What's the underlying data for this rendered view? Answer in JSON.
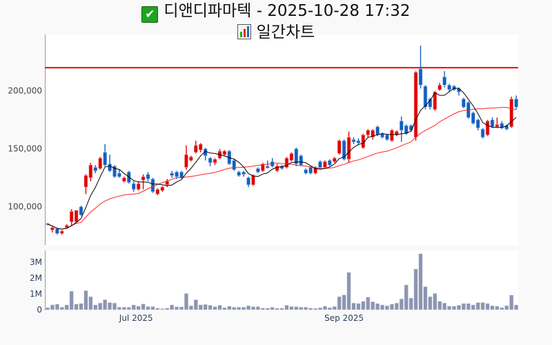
{
  "header": {
    "title": "디앤디파마텍 - 2025-10-28 17:32",
    "title_icon": "check-mark-icon",
    "subtitle": "일간차트",
    "subtitle_icon": "bar-chart-icon"
  },
  "colors": {
    "up": "#e00000",
    "down": "#1060c0",
    "ma_short": "#000000",
    "ma_long": "#ff2020",
    "ref_line": "#ff0000",
    "volume": "#8c95b0"
  },
  "chart_data": {
    "type": "candlestick",
    "title": "일간차트",
    "price_axis": {
      "ticks": [
        100000,
        150000,
        200000
      ],
      "tick_labels": [
        "100,000",
        "150,000",
        "200,000"
      ],
      "range": [
        67000,
        248600
      ]
    },
    "volume_axis": {
      "ticks": [
        0,
        1000000,
        2000000,
        3000000
      ],
      "tick_labels": [
        "0",
        "1M",
        "2M",
        "3M"
      ],
      "range": [
        0,
        3740000
      ]
    },
    "x_ticks": [
      {
        "label": "Jul 2025",
        "index": 18.5
      },
      {
        "label": "Sep 2025",
        "index": 62
      }
    ],
    "reference_line": 220000,
    "moving_averages": [
      5,
      20
    ],
    "ohlc_k": [
      [
        85.5,
        86,
        84,
        85
      ],
      [
        80,
        83,
        78,
        82
      ],
      [
        81,
        82,
        76,
        77
      ],
      [
        77,
        80,
        76,
        79
      ],
      [
        82,
        85,
        81,
        84
      ],
      [
        87,
        98,
        84,
        96
      ],
      [
        87,
        97,
        86,
        97
      ],
      [
        100,
        101,
        92,
        93
      ],
      [
        117,
        128,
        111,
        127
      ],
      [
        125,
        138,
        122,
        136
      ],
      [
        134,
        136,
        129,
        131
      ],
      [
        133,
        143,
        132,
        142
      ],
      [
        147,
        154,
        135,
        136
      ],
      [
        137,
        145,
        130,
        131
      ],
      [
        135,
        136,
        125,
        126
      ],
      [
        129,
        132,
        125,
        126
      ],
      [
        122,
        126,
        121,
        125
      ],
      [
        130,
        131,
        120,
        121
      ],
      [
        120,
        122,
        113,
        115
      ],
      [
        115,
        122,
        114,
        120
      ],
      [
        123,
        128,
        115,
        126
      ],
      [
        128,
        130,
        122,
        124
      ],
      [
        124,
        125,
        112,
        113
      ],
      [
        111,
        116,
        110,
        115
      ],
      [
        114,
        118,
        113,
        117
      ],
      [
        119,
        124,
        117,
        122
      ],
      [
        129,
        131,
        125,
        127
      ],
      [
        130,
        131,
        124,
        126
      ],
      [
        130,
        131,
        124,
        125
      ],
      [
        134,
        153,
        132,
        145
      ],
      [
        140,
        144,
        139,
        143
      ],
      [
        147,
        157,
        146,
        153
      ],
      [
        149,
        155,
        147,
        154
      ],
      [
        150,
        151,
        140,
        144
      ],
      [
        142,
        143,
        135,
        138
      ],
      [
        138,
        142,
        136,
        141
      ],
      [
        142,
        150,
        141,
        148
      ],
      [
        145,
        149,
        144,
        148
      ],
      [
        148,
        149,
        136,
        137
      ],
      [
        140,
        141,
        131,
        132
      ],
      [
        130,
        131,
        126,
        127
      ],
      [
        130,
        131,
        126,
        128
      ],
      [
        125,
        126,
        117,
        119
      ],
      [
        119,
        128,
        118,
        127
      ],
      [
        133,
        134,
        129,
        130
      ],
      [
        131,
        138,
        130,
        137
      ],
      [
        135,
        140,
        133,
        133.5
      ],
      [
        139,
        142,
        134,
        135
      ],
      [
        131,
        137,
        130,
        135
      ],
      [
        135,
        136,
        132,
        133
      ],
      [
        134,
        143,
        133,
        142
      ],
      [
        140,
        147,
        139,
        146
      ],
      [
        150,
        151,
        135,
        137
      ],
      [
        144,
        145,
        135,
        136
      ],
      [
        132,
        133,
        128,
        129
      ],
      [
        134,
        135,
        128,
        129
      ],
      [
        129,
        135,
        128,
        134
      ],
      [
        139,
        140,
        133,
        134
      ],
      [
        134,
        140,
        133,
        139
      ],
      [
        140,
        141,
        135,
        136
      ],
      [
        139,
        143,
        138,
        142
      ],
      [
        146,
        158,
        145,
        157
      ],
      [
        157,
        158,
        140,
        141
      ],
      [
        141,
        165,
        138,
        160
      ],
      [
        158,
        160,
        154,
        156
      ],
      [
        157,
        159,
        153,
        155
      ],
      [
        151,
        163,
        150,
        162
      ],
      [
        162,
        167,
        160,
        166
      ],
      [
        160,
        167,
        158,
        166
      ],
      [
        169,
        170,
        161,
        162
      ],
      [
        163,
        164,
        159,
        160
      ],
      [
        162,
        163,
        157,
        158
      ],
      [
        157,
        167,
        156,
        166
      ],
      [
        162,
        166,
        161,
        165
      ],
      [
        174,
        178,
        156,
        166
      ],
      [
        170,
        171,
        162,
        163
      ],
      [
        170,
        171,
        165,
        166
      ],
      [
        160,
        217,
        157,
        216
      ],
      [
        219,
        239,
        202,
        205
      ],
      [
        204,
        205,
        184,
        186
      ],
      [
        193,
        194,
        184,
        186
      ],
      [
        184,
        200,
        183,
        199
      ],
      [
        201,
        207,
        200,
        205
      ],
      [
        212,
        217,
        203,
        205
      ],
      [
        205,
        206,
        199,
        201
      ],
      [
        204,
        205,
        200,
        201
      ],
      [
        202,
        203,
        196,
        199
      ],
      [
        193,
        194,
        185,
        186
      ],
      [
        190,
        191,
        176,
        177
      ],
      [
        181,
        182,
        171,
        172
      ],
      [
        175,
        176,
        166,
        168
      ],
      [
        167,
        168,
        159,
        160
      ],
      [
        162,
        175,
        161,
        174
      ],
      [
        175,
        177,
        168,
        169
      ],
      [
        169,
        177,
        168,
        171
      ],
      [
        172,
        174,
        167,
        168
      ],
      [
        170,
        171,
        166,
        167
      ],
      [
        169,
        195,
        168,
        193
      ],
      [
        193,
        196,
        184,
        186
      ]
    ],
    "volume_m": [
      0.14,
      0.31,
      0.36,
      0.17,
      0.31,
      1.17,
      0.36,
      0.4,
      1.21,
      0.83,
      0.31,
      0.43,
      0.64,
      0.46,
      0.43,
      0.17,
      0.17,
      0.17,
      0.31,
      0.23,
      0.37,
      0.21,
      0.21,
      0.11,
      0.07,
      0.11,
      0.31,
      0.19,
      0.19,
      1.03,
      0.26,
      0.64,
      0.31,
      0.34,
      0.29,
      0.2,
      0.29,
      0.14,
      0.23,
      0.17,
      0.17,
      0.17,
      0.26,
      0.2,
      0.2,
      0.11,
      0.11,
      0.17,
      0.1,
      0.11,
      0.29,
      0.21,
      0.2,
      0.17,
      0.17,
      0.11,
      0.09,
      0.13,
      0.23,
      0.14,
      0.21,
      0.83,
      0.94,
      2.36,
      0.43,
      0.4,
      0.54,
      0.8,
      0.51,
      0.4,
      0.31,
      0.26,
      0.36,
      0.43,
      0.69,
      1.57,
      0.74,
      2.57,
      3.54,
      1.46,
      0.83,
      1.03,
      0.54,
      0.43,
      0.23,
      0.23,
      0.29,
      0.4,
      0.4,
      0.31,
      0.46,
      0.46,
      0.4,
      0.26,
      0.23,
      0.14,
      0.26,
      0.93,
      0.31
    ]
  }
}
